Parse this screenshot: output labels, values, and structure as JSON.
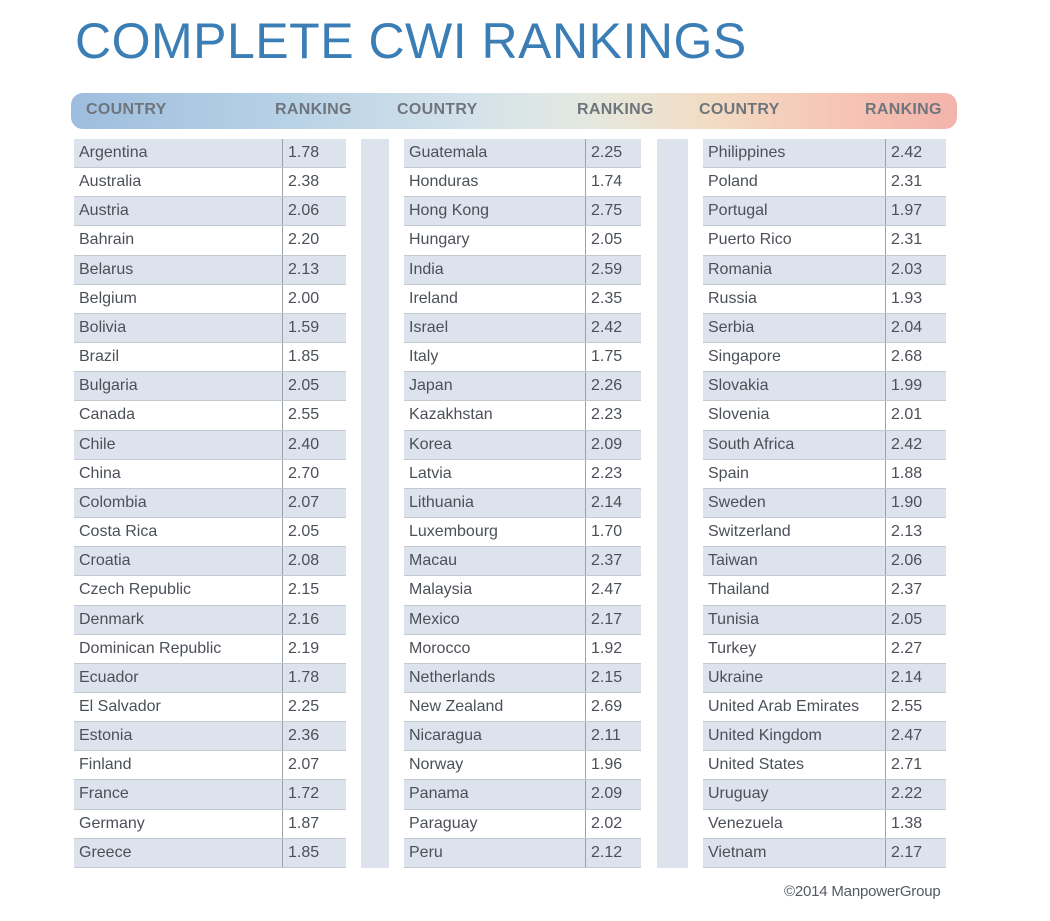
{
  "title": "COMPLETE CWI RANKINGS",
  "headers": {
    "country_label": "COUNTRY",
    "ranking_label": "RANKING"
  },
  "columns": [
    {
      "rows": [
        {
          "country": "Argentina",
          "ranking": "1.78"
        },
        {
          "country": "Australia",
          "ranking": "2.38"
        },
        {
          "country": "Austria",
          "ranking": "2.06"
        },
        {
          "country": "Bahrain",
          "ranking": "2.20"
        },
        {
          "country": "Belarus",
          "ranking": "2.13"
        },
        {
          "country": "Belgium",
          "ranking": "2.00"
        },
        {
          "country": "Bolivia",
          "ranking": "1.59"
        },
        {
          "country": "Brazil",
          "ranking": "1.85"
        },
        {
          "country": "Bulgaria",
          "ranking": "2.05"
        },
        {
          "country": "Canada",
          "ranking": "2.55"
        },
        {
          "country": "Chile",
          "ranking": "2.40"
        },
        {
          "country": "China",
          "ranking": "2.70"
        },
        {
          "country": "Colombia",
          "ranking": "2.07"
        },
        {
          "country": "Costa Rica",
          "ranking": "2.05"
        },
        {
          "country": "Croatia",
          "ranking": "2.08"
        },
        {
          "country": "Czech Republic",
          "ranking": "2.15"
        },
        {
          "country": "Denmark",
          "ranking": "2.16"
        },
        {
          "country": "Dominican Republic",
          "ranking": "2.19"
        },
        {
          "country": "Ecuador",
          "ranking": "1.78"
        },
        {
          "country": "El Salvador",
          "ranking": "2.25"
        },
        {
          "country": "Estonia",
          "ranking": "2.36"
        },
        {
          "country": "Finland",
          "ranking": "2.07"
        },
        {
          "country": "France",
          "ranking": "1.72"
        },
        {
          "country": "Germany",
          "ranking": "1.87"
        },
        {
          "country": "Greece",
          "ranking": "1.85"
        }
      ]
    },
    {
      "rows": [
        {
          "country": "Guatemala",
          "ranking": "2.25"
        },
        {
          "country": "Honduras",
          "ranking": "1.74"
        },
        {
          "country": "Hong Kong",
          "ranking": "2.75"
        },
        {
          "country": "Hungary",
          "ranking": "2.05"
        },
        {
          "country": "India",
          "ranking": "2.59"
        },
        {
          "country": "Ireland",
          "ranking": "2.35"
        },
        {
          "country": "Israel",
          "ranking": "2.42"
        },
        {
          "country": "Italy",
          "ranking": "1.75"
        },
        {
          "country": "Japan",
          "ranking": "2.26"
        },
        {
          "country": "Kazakhstan",
          "ranking": "2.23"
        },
        {
          "country": "Korea",
          "ranking": "2.09"
        },
        {
          "country": "Latvia",
          "ranking": "2.23"
        },
        {
          "country": "Lithuania",
          "ranking": "2.14"
        },
        {
          "country": "Luxembourg",
          "ranking": "1.70"
        },
        {
          "country": "Macau",
          "ranking": "2.37"
        },
        {
          "country": "Malaysia",
          "ranking": "2.47"
        },
        {
          "country": "Mexico",
          "ranking": "2.17"
        },
        {
          "country": "Morocco",
          "ranking": "1.92"
        },
        {
          "country": "Netherlands",
          "ranking": "2.15"
        },
        {
          "country": "New Zealand",
          "ranking": "2.69"
        },
        {
          "country": "Nicaragua",
          "ranking": "2.11"
        },
        {
          "country": "Norway",
          "ranking": "1.96"
        },
        {
          "country": "Panama",
          "ranking": "2.09"
        },
        {
          "country": "Paraguay",
          "ranking": "2.02"
        },
        {
          "country": "Peru",
          "ranking": "2.12"
        }
      ]
    },
    {
      "rows": [
        {
          "country": "Philippines",
          "ranking": "2.42"
        },
        {
          "country": "Poland",
          "ranking": "2.31"
        },
        {
          "country": "Portugal",
          "ranking": "1.97"
        },
        {
          "country": "Puerto Rico",
          "ranking": "2.31"
        },
        {
          "country": "Romania",
          "ranking": "2.03"
        },
        {
          "country": "Russia",
          "ranking": "1.93"
        },
        {
          "country": "Serbia",
          "ranking": "2.04"
        },
        {
          "country": "Singapore",
          "ranking": "2.68"
        },
        {
          "country": "Slovakia",
          "ranking": "1.99"
        },
        {
          "country": "Slovenia",
          "ranking": "2.01"
        },
        {
          "country": "South Africa",
          "ranking": "2.42"
        },
        {
          "country": "Spain",
          "ranking": "1.88"
        },
        {
          "country": "Sweden",
          "ranking": "1.90"
        },
        {
          "country": "Switzerland",
          "ranking": "2.13"
        },
        {
          "country": "Taiwan",
          "ranking": "2.06"
        },
        {
          "country": "Thailand",
          "ranking": "2.37"
        },
        {
          "country": "Tunisia",
          "ranking": "2.05"
        },
        {
          "country": "Turkey",
          "ranking": "2.27"
        },
        {
          "country": "Ukraine",
          "ranking": "2.14"
        },
        {
          "country": "United Arab Emirates",
          "ranking": "2.55"
        },
        {
          "country": "United Kingdom",
          "ranking": "2.47"
        },
        {
          "country": "United States",
          "ranking": "2.71"
        },
        {
          "country": "Uruguay",
          "ranking": "2.22"
        },
        {
          "country": "Venezuela",
          "ranking": "1.38"
        },
        {
          "country": "Vietnam",
          "ranking": "2.17"
        }
      ]
    }
  ],
  "copyright": "©2014 ManpowerGroup"
}
